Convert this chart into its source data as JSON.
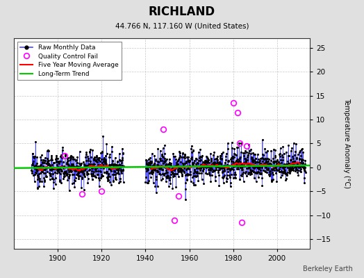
{
  "title": "RICHLAND",
  "subtitle": "44.766 N, 117.160 W (United States)",
  "ylabel": "Temperature Anomaly (°C)",
  "credit": "Berkeley Earth",
  "xlim": [
    1880,
    2015
  ],
  "ylim": [
    -17,
    27
  ],
  "yticks": [
    -15,
    -10,
    -5,
    0,
    5,
    10,
    15,
    20,
    25
  ],
  "xticks": [
    1900,
    1920,
    1940,
    1960,
    1980,
    2000
  ],
  "bg_color": "#e0e0e0",
  "plot_bg_color": "#ffffff",
  "grid_color": "#b0b0b0",
  "raw_line_color": "#4444ff",
  "raw_dot_color": "#000000",
  "qc_fail_color": "#ff00ff",
  "moving_avg_color": "#ff0000",
  "trend_color": "#00cc00",
  "seed": 12345,
  "segment1_start": 1888,
  "segment1_end": 1930,
  "segment2_start": 1940,
  "segment2_end": 2013,
  "raw_std": 2.2,
  "trend_slope": 0.004,
  "trend_intercept": 0.15,
  "qc_fail_years": [
    1903,
    1911,
    1920,
    1948,
    1953,
    1955,
    1980,
    1982,
    1983,
    1984,
    1986
  ],
  "qc_fail_vals": [
    2.5,
    -5.5,
    -5.0,
    8.0,
    -11.0,
    -6.0,
    13.5,
    11.5,
    5.0,
    -11.5,
    4.5
  ]
}
